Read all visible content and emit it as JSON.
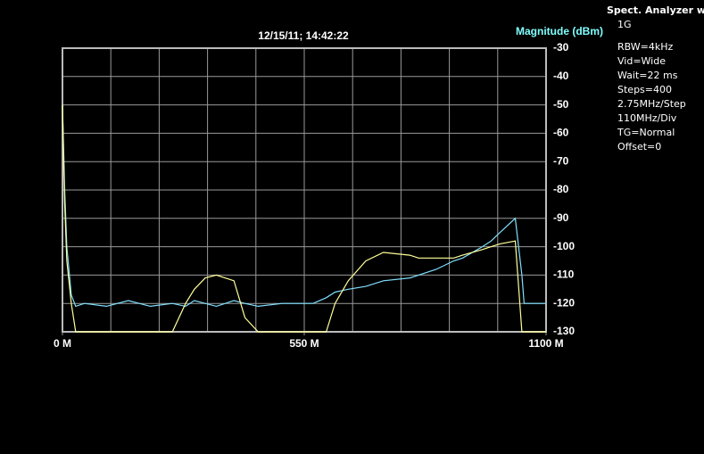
{
  "chart_data": {
    "type": "line",
    "title": "12/15/11; 14:42:22",
    "y_label": "Magnitude (dBm)",
    "y_label_color": "#80ffff",
    "info": [
      "Spect. Analyzer with TG",
      "1G",
      "RBW=4kHz",
      "Vid=Wide",
      "Wait=22 ms",
      "Steps=400",
      "2.75MHz/Step",
      "110MHz/Div",
      "TG=Normal",
      "Offset=0"
    ],
    "x": [
      0,
      5,
      10,
      20,
      30,
      50,
      100,
      150,
      200,
      250,
      280,
      300,
      325,
      350,
      390,
      415,
      445,
      500,
      550,
      570,
      600,
      620,
      650,
      690,
      730,
      790,
      810,
      850,
      890,
      910,
      955,
      975,
      995,
      1030,
      1045,
      1050,
      1100
    ],
    "series": [
      {
        "color": "#80e0ff",
        "values": [
          -50,
          -80,
          -100,
          -117,
          -121,
          -120,
          -121,
          -119,
          -121,
          -120,
          -121,
          -119,
          -120,
          -121,
          -119,
          -120,
          -121,
          -120,
          -120,
          -120,
          -118,
          -116,
          -115,
          -114,
          -112,
          -111,
          -110,
          -108,
          -105,
          -104,
          -100,
          -98,
          -95,
          -90,
          -110,
          -120,
          -120
        ]
      },
      {
        "color": "#ffff99",
        "values": [
          -50,
          -85,
          -105,
          -120,
          -130,
          -130,
          -130,
          -130,
          -130,
          -130,
          -120,
          -115,
          -111,
          -110,
          -112,
          -125,
          -130,
          -130,
          -130,
          -130,
          -130,
          -120,
          -112,
          -105,
          -102,
          -103,
          -104,
          -104,
          -104,
          -103,
          -101,
          -100,
          -99,
          -98,
          -130,
          -130,
          -130
        ]
      }
    ],
    "xlim": [
      0,
      1100
    ],
    "xticks": [
      {
        "value": 0,
        "label": "0 M"
      },
      {
        "value": 550,
        "label": "550 M"
      },
      {
        "value": 1100,
        "label": "1100 M"
      }
    ],
    "ylim": [
      -130,
      -30
    ],
    "yticks": [
      -30,
      -40,
      -50,
      -60,
      -70,
      -80,
      -90,
      -100,
      -110,
      -120,
      -130
    ],
    "grid": true
  }
}
